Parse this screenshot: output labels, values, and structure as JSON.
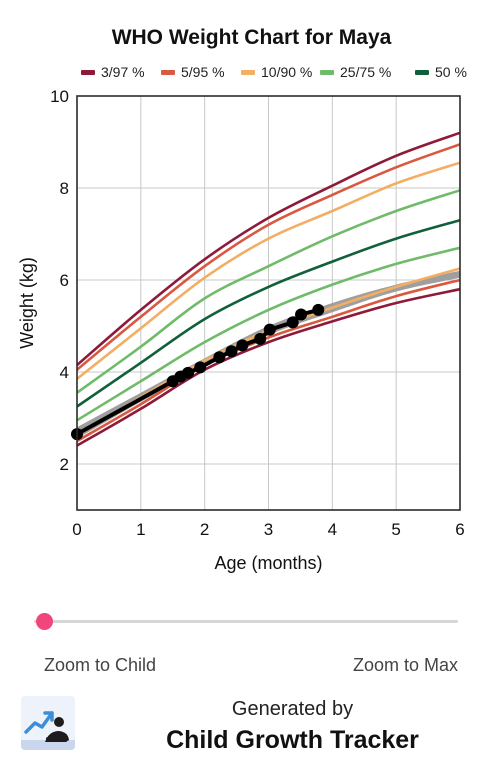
{
  "chart_data": {
    "type": "line",
    "title": "WHO Weight Chart for Maya",
    "xlabel": "Age (months)",
    "ylabel": "Weight (kg)",
    "xlim": [
      0,
      6
    ],
    "ylim": [
      1,
      10
    ],
    "xticks": [
      0,
      1,
      2,
      3,
      4,
      5,
      6
    ],
    "yticks": [
      2,
      4,
      6,
      8,
      10
    ],
    "grid": true,
    "legend_position": "top",
    "x": [
      0,
      1,
      2,
      3,
      4,
      5,
      6
    ],
    "legend": [
      {
        "label": "3/97 %",
        "color": "#8e1a3a"
      },
      {
        "label": "5/95 %",
        "color": "#d95840"
      },
      {
        "label": "10/90 %",
        "color": "#f2ae63"
      },
      {
        "label": "25/75 %",
        "color": "#6fbb6a"
      },
      {
        "label": "50 %",
        "color": "#10613a"
      }
    ],
    "series": [
      {
        "name": "3/97 %",
        "color": "#8e1a3a",
        "values": [
          2.4,
          3.2,
          4.05,
          4.65,
          5.1,
          5.5,
          5.8
        ]
      },
      {
        "name": "5/95 %",
        "color": "#d95840",
        "values": [
          2.5,
          3.3,
          4.15,
          4.75,
          5.2,
          5.65,
          6.0
        ]
      },
      {
        "name": "10/90 %",
        "color": "#f2ae63",
        "values": [
          2.62,
          3.45,
          4.25,
          4.9,
          5.4,
          5.85,
          6.25
        ]
      },
      {
        "name": "25/75 %",
        "color": "#6fbb6a",
        "values": [
          2.95,
          3.8,
          4.65,
          5.35,
          5.9,
          6.35,
          6.7
        ]
      },
      {
        "name": "50 %",
        "color": "#10613a",
        "values": [
          3.25,
          4.2,
          5.15,
          5.85,
          6.4,
          6.9,
          7.3
        ]
      },
      {
        "name": "25/75 %",
        "color": "#6fbb6a",
        "values": [
          3.55,
          4.55,
          5.6,
          6.3,
          6.95,
          7.5,
          7.95
        ]
      },
      {
        "name": "10/90 %",
        "color": "#f2ae63",
        "values": [
          3.85,
          4.95,
          6.05,
          6.9,
          7.5,
          8.1,
          8.55
        ]
      },
      {
        "name": "5/95 %",
        "color": "#d95840",
        "values": [
          4.05,
          5.2,
          6.3,
          7.2,
          7.85,
          8.45,
          8.95
        ]
      },
      {
        "name": "3/97 %",
        "color": "#8e1a3a",
        "values": [
          4.15,
          5.35,
          6.45,
          7.35,
          8.05,
          8.7,
          9.2
        ]
      }
    ],
    "projection": {
      "color": "#9a9a9a",
      "x": [
        0,
        1,
        2,
        3,
        4,
        5,
        6
      ],
      "lower": [
        2.55,
        3.35,
        4.1,
        4.8,
        5.3,
        5.75,
        6.05
      ],
      "upper": [
        2.8,
        3.55,
        4.3,
        5.0,
        5.5,
        5.9,
        6.2
      ]
    },
    "child_measurements": {
      "color": "#000000",
      "x": [
        0,
        1.5,
        1.62,
        1.74,
        1.93,
        2.23,
        2.42,
        2.59,
        2.87,
        3.02,
        3.38,
        3.51,
        3.78
      ],
      "y": [
        2.65,
        3.8,
        3.9,
        3.98,
        4.1,
        4.32,
        4.45,
        4.58,
        4.72,
        4.92,
        5.08,
        5.25,
        5.35
      ]
    }
  },
  "slider": {
    "zoom_child_label": "Zoom to Child",
    "zoom_max_label": "Zoom to Max",
    "thumb_color": "#f0467b",
    "value": 0
  },
  "footer": {
    "generated_by": "Generated by",
    "app_name": "Child Growth Tracker",
    "logo_icon": "baby-growth-chart-icon"
  }
}
